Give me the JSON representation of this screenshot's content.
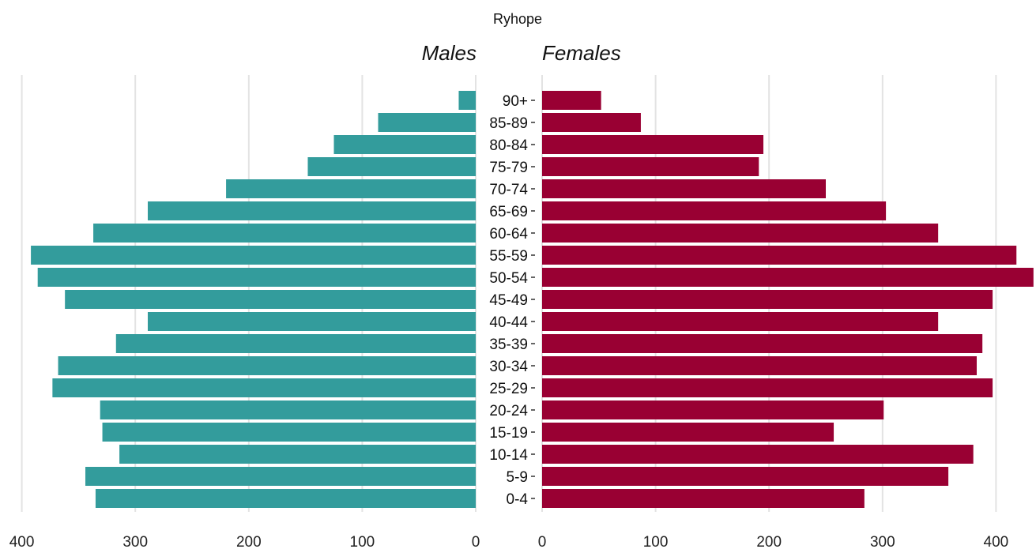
{
  "chart_data": {
    "type": "bar",
    "orientation": "horizontal",
    "layout": "population-pyramid",
    "title": "Ryhope",
    "categories": [
      "0-4",
      "5-9",
      "10-14",
      "15-19",
      "20-24",
      "25-29",
      "30-34",
      "35-39",
      "40-44",
      "45-49",
      "50-54",
      "55-59",
      "60-64",
      "65-69",
      "70-74",
      "75-79",
      "80-84",
      "85-89",
      "90+"
    ],
    "series": [
      {
        "name": "Males",
        "color": "#339c9c",
        "values": [
          335,
          344,
          314,
          329,
          331,
          373,
          368,
          317,
          289,
          362,
          386,
          392,
          337,
          289,
          220,
          148,
          125,
          86,
          15
        ]
      },
      {
        "name": "Females",
        "color": "#990033",
        "values": [
          284,
          358,
          380,
          257,
          301,
          397,
          383,
          388,
          349,
          397,
          433,
          418,
          349,
          303,
          250,
          191,
          195,
          87,
          52
        ]
      }
    ],
    "xlim": [
      0,
      400
    ],
    "xticks": [
      400,
      300,
      200,
      100,
      0
    ],
    "xticks_right": [
      0,
      100,
      200,
      300,
      400
    ],
    "grid": true,
    "legend": "none"
  }
}
